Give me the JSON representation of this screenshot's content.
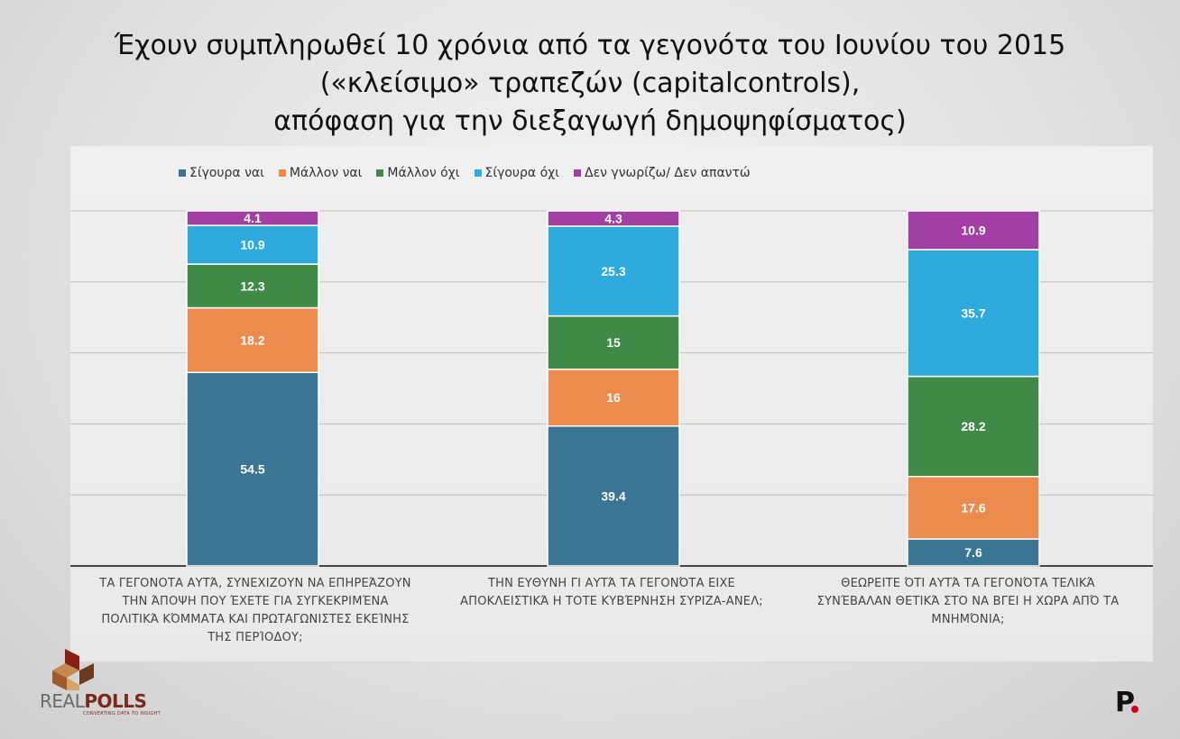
{
  "title_lines": [
    "Έχουν συμπληρωθεί 10 χρόνια από τα γεγονότα του Ιουνίου του 2015",
    "(«κλείσιμο» τραπεζών (capitalcontrols),",
    "απόφαση για την διεξαγωγή δημοψηφίσματος)"
  ],
  "brand": {
    "logo_name": "REALPOLLS",
    "logo_part1": "REAL",
    "logo_part2": "POLLS",
    "logo_tagline": "CONVERTING DATA TO INSIGHT",
    "corner_mark": "P"
  },
  "colors": {
    "Σίγουρα ναι": "#3a7693",
    "Μάλλον ναι": "#ec8b4e",
    "Μάλλον όχι": "#3f8a47",
    "Σίγουρα όχι": "#2eaadc",
    "Δεν γνωρίζω/ Δεν απαντώ": "#a23fa2"
  },
  "chart_data": {
    "type": "bar",
    "stacked": true,
    "legend_position": "top-left",
    "grid": true,
    "ylim": [
      0,
      100
    ],
    "categories": [
      [
        "ΤΑ ΓΕΓΟΝΟΤΑ ΑΥΤΆ, ΣΥΝΕΧΙΖΟΥΝ ΝΑ ΕΠΗΡΕΆΖΟΥΝ",
        "ΤΗΝ ΆΠΟΨΗ ΠΟΥ ΈΧΕΤΕ ΓΙΑ ΣΥΓΚΕΚΡΙΜΈΝΑ",
        "ΠΟΛΙΤΙΚΆ ΚΌΜΜΑΤΑ ΚΑΙ ΠΡΩΤΑΓΩΝΙΣΤΕΣ ΕΚΕΊΝΗΣ",
        "ΤΗΣ ΠΕΡΊΟΔΟΥ;"
      ],
      [
        "ΤΗΝ ΕΥΘΥΝΗ ΓΙ ΑΥΤΆ ΤΑ ΓΕΓΟΝΌΤΑ ΕΙΧΕ",
        "ΑΠΟΚΛΕΙΣΤΙΚΆ Η ΤΟΤΕ ΚΥΒΈΡΝΗΣΗ ΣΥΡΙΖΑ-ΑΝΕΛ;"
      ],
      [
        "ΘΕΩΡΕΙΤΕ ΌΤΙ ΑΥΤΆ ΤΑ ΓΕΓΟΝΌΤΑ ΤΕΛΙΚΆ",
        "ΣΥΝΈΒΑΛΑΝ ΘΕΤΙΚΆ ΣΤΟ ΝΑ ΒΓΕΙ Η ΧΩΡΑ ΑΠΌ ΤΑ",
        "ΜΝΗΜΌΝΙΑ;"
      ]
    ],
    "series": [
      {
        "name": "Σίγουρα ναι",
        "values": [
          54.5,
          39.4,
          7.6
        ]
      },
      {
        "name": "Μάλλον ναι",
        "values": [
          18.2,
          16,
          17.6
        ]
      },
      {
        "name": "Μάλλον όχι",
        "values": [
          12.3,
          15,
          28.2
        ]
      },
      {
        "name": "Σίγουρα όχι",
        "values": [
          10.9,
          25.3,
          35.7
        ]
      },
      {
        "name": "Δεν γνωρίζω/ Δεν απαντώ",
        "values": [
          4.1,
          4.3,
          10.9
        ]
      }
    ]
  }
}
